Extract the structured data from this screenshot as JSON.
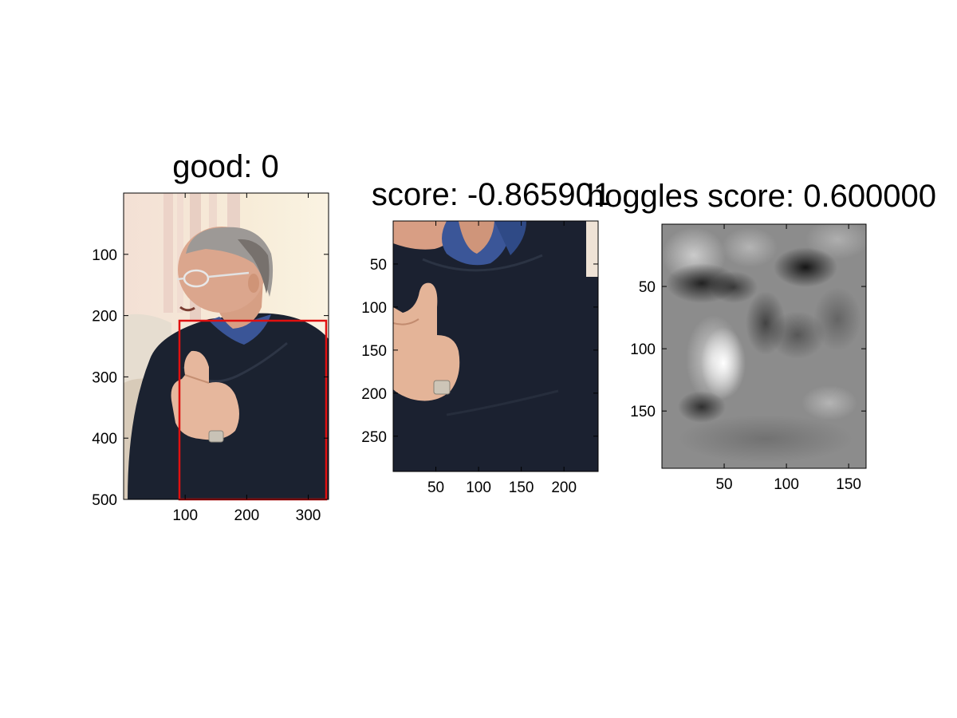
{
  "panels": [
    {
      "title": "good: 0",
      "image": "photo-man-sweater",
      "x_ticks": [
        100,
        200,
        300
      ],
      "y_ticks": [
        100,
        200,
        300,
        400,
        500
      ],
      "x_range": [
        0,
        333
      ],
      "y_range": [
        0,
        500
      ],
      "bbox_data": {
        "x1": 90,
        "y1": 210,
        "x2": 328,
        "y2": 500
      },
      "bbox_color": "#e01010"
    },
    {
      "title": "score: -0.865901",
      "image": "crop-sweater-hand",
      "x_ticks": [
        50,
        100,
        150,
        200
      ],
      "y_ticks": [
        50,
        100,
        150,
        200,
        250
      ],
      "x_range": [
        0,
        240
      ],
      "y_range": [
        0,
        291
      ]
    },
    {
      "title": "hoggles score: 0.600000",
      "image": "hoggles-grayscale-map",
      "x_ticks": [
        50,
        100,
        150
      ],
      "y_ticks": [
        50,
        100,
        150
      ],
      "x_range": [
        0,
        164
      ],
      "y_range": [
        0,
        196
      ]
    }
  ]
}
